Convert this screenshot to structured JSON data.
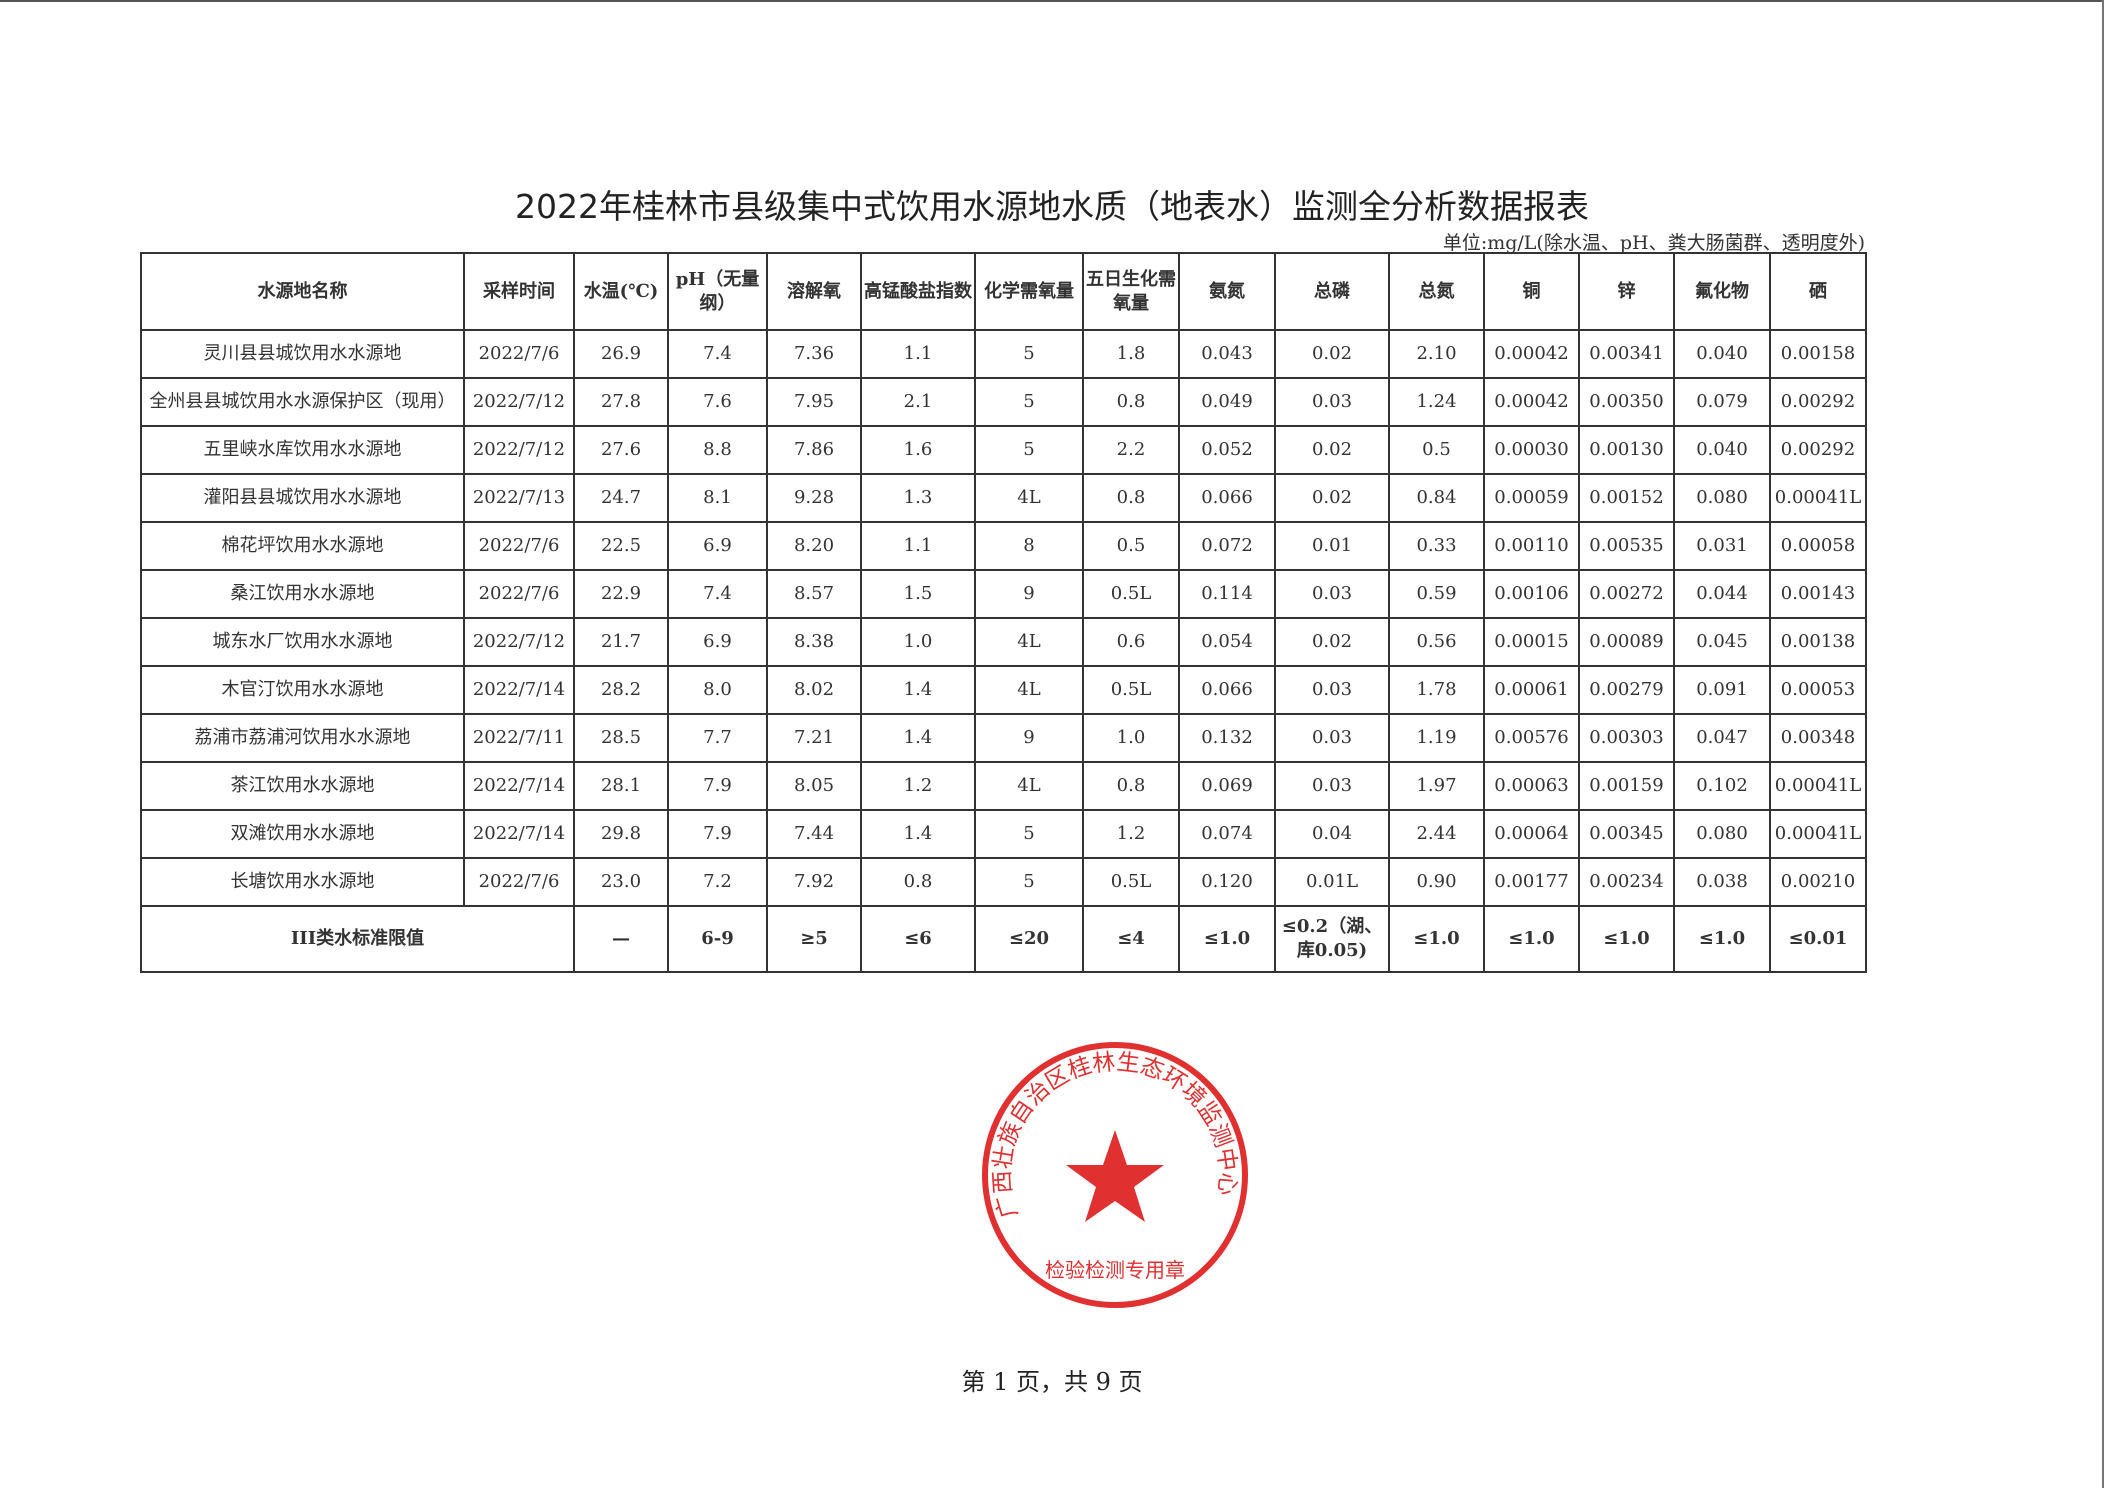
{
  "title": "2022年桂林市县级集中式饮用水源地水质（地表水）监测全分析数据报表",
  "unit_note": "单位:mg/L(除水温、pH、粪大肠菌群、透明度外)",
  "columns": [
    "水源地名称",
    "采样时间",
    "水温(℃)",
    "pH（无量纲）",
    "溶解氧",
    "高锰酸盐指数",
    "化学需氧量",
    "五日生化需氧量",
    "氨氮",
    "总磷",
    "总氮",
    "铜",
    "锌",
    "氟化物",
    "硒"
  ],
  "rows": [
    [
      "灵川县县城饮用水水源地",
      "2022/7/6",
      "26.9",
      "7.4",
      "7.36",
      "1.1",
      "5",
      "1.8",
      "0.043",
      "0.02",
      "2.10",
      "0.00042",
      "0.00341",
      "0.040",
      "0.00158"
    ],
    [
      "全州县县城饮用水水源保护区（现用）",
      "2022/7/12",
      "27.8",
      "7.6",
      "7.95",
      "2.1",
      "5",
      "0.8",
      "0.049",
      "0.03",
      "1.24",
      "0.00042",
      "0.00350",
      "0.079",
      "0.00292"
    ],
    [
      "五里峡水库饮用水水源地",
      "2022/7/12",
      "27.6",
      "8.8",
      "7.86",
      "1.6",
      "5",
      "2.2",
      "0.052",
      "0.02",
      "0.5",
      "0.00030",
      "0.00130",
      "0.040",
      "0.00292"
    ],
    [
      "灌阳县县城饮用水水源地",
      "2022/7/13",
      "24.7",
      "8.1",
      "9.28",
      "1.3",
      "4L",
      "0.8",
      "0.066",
      "0.02",
      "0.84",
      "0.00059",
      "0.00152",
      "0.080",
      "0.00041L"
    ],
    [
      "棉花坪饮用水水源地",
      "2022/7/6",
      "22.5",
      "6.9",
      "8.20",
      "1.1",
      "8",
      "0.5",
      "0.072",
      "0.01",
      "0.33",
      "0.00110",
      "0.00535",
      "0.031",
      "0.00058"
    ],
    [
      "桑江饮用水水源地",
      "2022/7/6",
      "22.9",
      "7.4",
      "8.57",
      "1.5",
      "9",
      "0.5L",
      "0.114",
      "0.03",
      "0.59",
      "0.00106",
      "0.00272",
      "0.044",
      "0.00143"
    ],
    [
      "城东水厂饮用水水源地",
      "2022/7/12",
      "21.7",
      "6.9",
      "8.38",
      "1.0",
      "4L",
      "0.6",
      "0.054",
      "0.02",
      "0.56",
      "0.00015",
      "0.00089",
      "0.045",
      "0.00138"
    ],
    [
      "木官汀饮用水水源地",
      "2022/7/14",
      "28.2",
      "8.0",
      "8.02",
      "1.4",
      "4L",
      "0.5L",
      "0.066",
      "0.03",
      "1.78",
      "0.00061",
      "0.00279",
      "0.091",
      "0.00053"
    ],
    [
      "荔浦市荔浦河饮用水水源地",
      "2022/7/11",
      "28.5",
      "7.7",
      "7.21",
      "1.4",
      "9",
      "1.0",
      "0.132",
      "0.03",
      "1.19",
      "0.00576",
      "0.00303",
      "0.047",
      "0.00348"
    ],
    [
      "茶江饮用水水源地",
      "2022/7/14",
      "28.1",
      "7.9",
      "8.05",
      "1.2",
      "4L",
      "0.8",
      "0.069",
      "0.03",
      "1.97",
      "0.00063",
      "0.00159",
      "0.102",
      "0.00041L"
    ],
    [
      "双滩饮用水水源地",
      "2022/7/14",
      "29.8",
      "7.9",
      "7.44",
      "1.4",
      "5",
      "1.2",
      "0.074",
      "0.04",
      "2.44",
      "0.00064",
      "0.00345",
      "0.080",
      "0.00041L"
    ],
    [
      "长塘饮用水水源地",
      "2022/7/6",
      "23.0",
      "7.2",
      "7.92",
      "0.8",
      "5",
      "0.5L",
      "0.120",
      "0.01L",
      "0.90",
      "0.00177",
      "0.00234",
      "0.038",
      "0.00210"
    ]
  ],
  "standard_row": {
    "label": "III类水标准限值",
    "values": [
      "—",
      "6-9",
      "≥5",
      "≤6",
      "≤20",
      "≤4",
      "≤1.0",
      "≤0.2（湖、库0.05)",
      "≤1.0",
      "≤1.0",
      "≤1.0",
      "≤1.0",
      "≤0.01"
    ]
  },
  "footer": "第 1 页，共 9 页",
  "stamp": {
    "text": "广西壮族自治区桂林生态环境监测中心",
    "bottom_text": "检验检测专用章",
    "color": "#e03030"
  }
}
